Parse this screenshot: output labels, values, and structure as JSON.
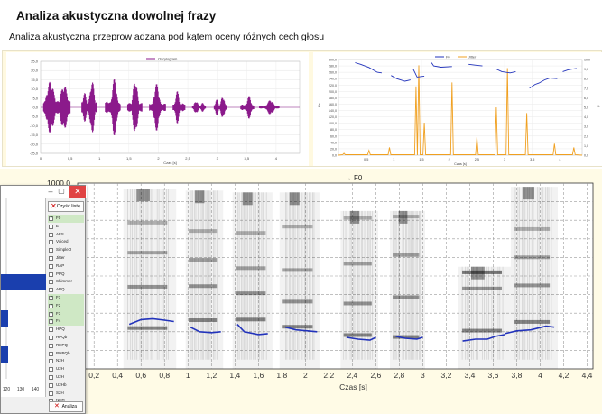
{
  "page": {
    "title": "Analiza akustyczna dowolnej frazy",
    "subtitle": "Analiza akustyczna przeprow adzana pod kątem oceny różnych cech głosu"
  },
  "colors": {
    "waveform": "#8b1a8b",
    "f0": "#2233bb",
    "jitter": "#f0a020",
    "band": "#fffbe6",
    "checked_row": "#cfe8c5",
    "bar": "#1a3fae"
  },
  "chart_data": [
    {
      "type": "line",
      "legend": [
        "Oscylogram"
      ],
      "ylabel": "",
      "xlabel": "Czas [s]",
      "yticks": [
        "25,0",
        "20,0",
        "15,0",
        "10,0",
        "5,0",
        "0,0",
        "-5,0",
        "-10,0",
        "-15,0",
        "-20,0",
        "-25,0"
      ],
      "xticks": [
        "0",
        "0,5",
        "1",
        "1,5",
        "2",
        "2,5",
        "3",
        "3,5",
        "4"
      ],
      "x_range": [
        0,
        4.4
      ],
      "y_range": [
        -25,
        25
      ],
      "segments": [
        {
          "start": 0.05,
          "end": 0.5,
          "amp": 22
        },
        {
          "start": 0.7,
          "end": 0.95,
          "amp": 19
        },
        {
          "start": 1.1,
          "end": 1.35,
          "amp": 17
        },
        {
          "start": 1.48,
          "end": 1.72,
          "amp": 15
        },
        {
          "start": 1.85,
          "end": 2.12,
          "amp": 13
        },
        {
          "start": 2.25,
          "end": 2.45,
          "amp": 10
        },
        {
          "start": 2.58,
          "end": 2.8,
          "amp": 5
        },
        {
          "start": 2.95,
          "end": 3.15,
          "amp": 9
        },
        {
          "start": 3.4,
          "end": 3.62,
          "amp": 7
        },
        {
          "start": 3.72,
          "end": 4.05,
          "amp": 4
        }
      ]
    },
    {
      "type": "line",
      "legend": [
        "F0",
        "Jitter"
      ],
      "xlabel": "Czas [s]",
      "ylabel_left": "Hz",
      "ylabel_right": "%",
      "yticks_left": [
        "300,0",
        "280,0",
        "260,0",
        "240,0",
        "220,0",
        "200,0",
        "180,0",
        "160,0",
        "140,0",
        "120,0",
        "100,0",
        "80,0",
        "60,0",
        "40,0",
        "20,0",
        "0,0"
      ],
      "yticks_right": [
        "10,0",
        "9,0",
        "8,0",
        "7,0",
        "6,0",
        "5,0",
        "4,0",
        "3,0",
        "2,0",
        "1,0",
        "0,0"
      ],
      "xticks": [
        "0,5",
        "1",
        "1,5",
        "2",
        "2,5",
        "3",
        "3,5",
        "4"
      ],
      "x_range": [
        0,
        4.4
      ],
      "y_range": [
        0,
        300
      ],
      "f0_series": [
        [
          [
            0.3,
            290
          ],
          [
            0.4,
            285
          ],
          [
            0.55,
            275
          ],
          [
            0.7,
            260
          ],
          [
            0.78,
            258
          ]
        ],
        [
          [
            0.95,
            250
          ],
          [
            1.05,
            240
          ],
          [
            1.2,
            232
          ],
          [
            1.3,
            236
          ]
        ],
        [
          [
            1.35,
            270
          ],
          [
            1.42,
            245
          ],
          [
            1.55,
            248
          ]
        ],
        [
          [
            1.68,
            290
          ],
          [
            1.72,
            280
          ],
          [
            1.85,
            276
          ],
          [
            2.05,
            278
          ]
        ],
        [
          [
            2.35,
            285
          ],
          [
            2.5,
            282
          ],
          [
            2.6,
            280
          ]
        ],
        [
          [
            2.85,
            270
          ],
          [
            2.95,
            262
          ],
          [
            3.1,
            258
          ],
          [
            3.2,
            262
          ]
        ],
        [
          [
            3.45,
            210
          ],
          [
            3.55,
            222
          ],
          [
            3.62,
            226
          ],
          [
            3.72,
            236
          ],
          [
            3.82,
            242
          ],
          [
            3.95,
            240
          ]
        ],
        [
          [
            4.05,
            262
          ],
          [
            4.15,
            268
          ],
          [
            4.3,
            272
          ]
        ]
      ],
      "jitter_peaks": [
        [
          0.1,
          0.2
        ],
        [
          0.55,
          0.5
        ],
        [
          0.92,
          0.8
        ],
        [
          1.4,
          7.2
        ],
        [
          1.45,
          9.4
        ],
        [
          1.55,
          3.4
        ],
        [
          2.05,
          7.6
        ],
        [
          2.5,
          1.9
        ],
        [
          2.85,
          5.0
        ],
        [
          3.05,
          9.1
        ],
        [
          3.4,
          4.4
        ],
        [
          3.9,
          1.2
        ],
        [
          4.25,
          0.8
        ]
      ]
    },
    {
      "type": "heatmap",
      "title": "F0",
      "xlabel": "Czas [s]",
      "ymax_label": "1000,0",
      "xticks": [
        "0,2",
        "0,4",
        "0,6",
        "0,8",
        "1",
        "1,2",
        "1,4",
        "1,6",
        "1,8",
        "2",
        "2,2",
        "2,4",
        "2,6",
        "2,8",
        "3",
        "3,2",
        "3,4",
        "3,6",
        "3,8",
        "4",
        "4,2",
        "4,4"
      ],
      "x_range": [
        0.06,
        4.45
      ],
      "syllables": [
        {
          "start": 0.45,
          "end": 0.9,
          "f0": 0.24,
          "height": 0.97
        },
        {
          "start": 0.98,
          "end": 1.3,
          "f0": 0.21,
          "height": 0.96
        },
        {
          "start": 1.38,
          "end": 1.72,
          "f0": 0.2,
          "height": 0.95
        },
        {
          "start": 1.78,
          "end": 2.12,
          "f0": 0.21,
          "height": 0.95
        },
        {
          "start": 2.3,
          "end": 2.62,
          "f0": 0.16,
          "height": 0.85
        },
        {
          "start": 2.72,
          "end": 3.02,
          "f0": 0.17,
          "height": 0.85
        },
        {
          "start": 3.3,
          "end": 3.75,
          "f0": 0.16,
          "height": 0.55
        },
        {
          "start": 3.75,
          "end": 4.15,
          "f0": 0.22,
          "height": 0.98
        }
      ],
      "f0_series": [
        [
          [
            0.5,
            0.24
          ],
          [
            0.6,
            0.265
          ],
          [
            0.7,
            0.27
          ],
          [
            0.8,
            0.262
          ],
          [
            0.88,
            0.255
          ]
        ],
        [
          [
            1.02,
            0.225
          ],
          [
            1.1,
            0.2
          ],
          [
            1.2,
            0.195
          ],
          [
            1.28,
            0.2
          ]
        ],
        [
          [
            1.42,
            0.24
          ],
          [
            1.48,
            0.2
          ],
          [
            1.6,
            0.185
          ],
          [
            1.68,
            0.19
          ]
        ],
        [
          [
            1.83,
            0.225
          ],
          [
            1.92,
            0.21
          ],
          [
            2.02,
            0.205
          ],
          [
            2.1,
            0.2
          ]
        ],
        [
          [
            2.35,
            0.17
          ],
          [
            2.45,
            0.16
          ],
          [
            2.55,
            0.155
          ],
          [
            2.6,
            0.17
          ]
        ],
        [
          [
            2.77,
            0.175
          ],
          [
            2.85,
            0.165
          ],
          [
            2.95,
            0.16
          ],
          [
            3.0,
            0.17
          ]
        ],
        [
          [
            3.34,
            0.15
          ],
          [
            3.45,
            0.16
          ],
          [
            3.55,
            0.16
          ],
          [
            3.62,
            0.175
          ],
          [
            3.7,
            0.185
          ]
        ],
        [
          [
            3.7,
            0.19
          ],
          [
            3.8,
            0.205
          ],
          [
            3.92,
            0.21
          ],
          [
            4.05,
            0.23
          ],
          [
            4.12,
            0.225
          ]
        ]
      ]
    }
  ],
  "side_panel": {
    "bar_ticks": [
      "120",
      "130",
      "140"
    ],
    "bars": [
      {
        "y": 0.42,
        "h": 0.09,
        "value": 1.0
      },
      {
        "y": 0.62,
        "h": 0.09,
        "value": 0.16
      },
      {
        "y": 0.82,
        "h": 0.09,
        "value": 0.16
      }
    ],
    "clear_label": "Czyść listę",
    "apply_label": "Analiza",
    "items": [
      {
        "label": "F0",
        "checked": true
      },
      {
        "label": "E",
        "checked": false
      },
      {
        "label": "AFS",
        "checked": false
      },
      {
        "label": "Voiced",
        "checked": false
      },
      {
        "label": "SimpleO",
        "checked": false
      },
      {
        "label": "Jitter",
        "checked": false
      },
      {
        "label": "RAP",
        "checked": false
      },
      {
        "label": "PPQ",
        "checked": false
      },
      {
        "label": "Shimmer",
        "checked": false
      },
      {
        "label": "APQ",
        "checked": false
      },
      {
        "label": "F1",
        "checked": true
      },
      {
        "label": "F2",
        "checked": true
      },
      {
        "label": "F3",
        "checked": true
      },
      {
        "label": "F4",
        "checked": true
      },
      {
        "label": "HPQ",
        "checked": false
      },
      {
        "label": "HPQb",
        "checked": false
      },
      {
        "label": "RHPQ",
        "checked": false
      },
      {
        "label": "RHPQb",
        "checked": false
      },
      {
        "label": "N2H",
        "checked": false
      },
      {
        "label": "U2H",
        "checked": false
      },
      {
        "label": "U2H",
        "checked": false
      },
      {
        "label": "U2Hb",
        "checked": false
      },
      {
        "label": "S2H",
        "checked": false
      },
      {
        "label": "NHR",
        "checked": false
      },
      {
        "label": "G",
        "checked": false
      },
      {
        "label": "Sg",
        "checked": false
      }
    ]
  }
}
